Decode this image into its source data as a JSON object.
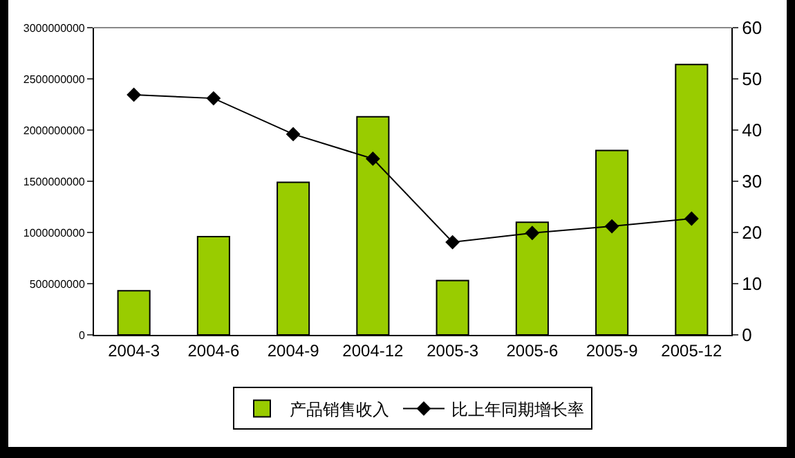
{
  "chart_data": {
    "type": "bar",
    "categories": [
      "2004-3",
      "2004-6",
      "2004-9",
      "2004-12",
      "2005-3",
      "2005-6",
      "2005-9",
      "2005-12"
    ],
    "series": [
      {
        "name": "产品销售收入",
        "color": "#99cc00",
        "values": [
          430000000,
          960000000,
          1490000000,
          2130000000,
          530000000,
          1100000000,
          1800000000,
          2640000000
        ]
      },
      {
        "name": "比上年同期增长率",
        "type": "line",
        "axis": "y2",
        "color": "#000000",
        "marker": "diamond",
        "values": [
          46.9,
          46.2,
          39.2,
          34.4,
          18.1,
          19.9,
          21.2,
          22.7
        ]
      }
    ],
    "ylim": [
      0,
      3000000000
    ],
    "yticks": [
      0,
      500000000,
      1000000000,
      1500000000,
      2000000000,
      2500000000,
      3000000000
    ],
    "y2lim": [
      0,
      60
    ],
    "y2ticks": [
      0,
      10,
      20,
      30,
      40,
      50,
      60
    ],
    "grid": false,
    "legend": "bottom"
  }
}
